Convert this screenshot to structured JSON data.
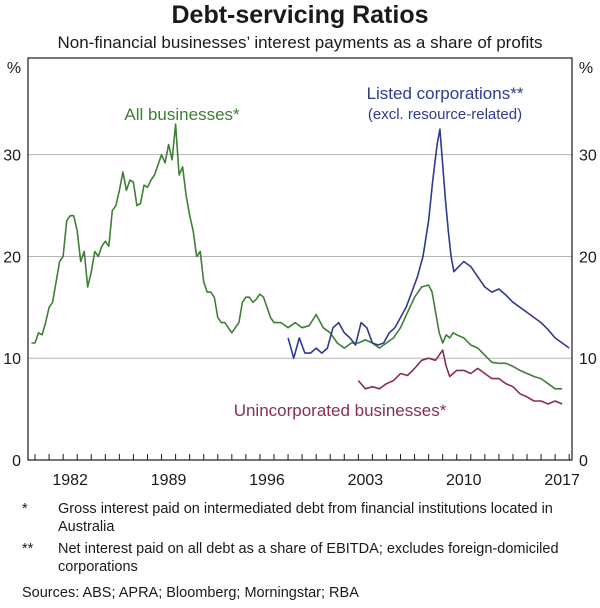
{
  "chart_data": {
    "type": "line",
    "title": "Debt-servicing Ratios",
    "subtitle": "Non-financial businesses’ interest payments as a share of profits",
    "y_unit_left": "%",
    "y_unit_right": "%",
    "ylim": [
      0,
      39.5
    ],
    "yticks": [
      0,
      10,
      20,
      30
    ],
    "xlim": [
      1979.5,
      2018.2
    ],
    "xticks": [
      1982,
      1989,
      1996,
      2003,
      2010,
      2017
    ],
    "grid": true,
    "series": [
      {
        "name": "All businesses*",
        "color": "#3f7f35",
        "x": [
          1979.75,
          1980.0,
          1980.25,
          1980.5,
          1980.75,
          1981.0,
          1981.25,
          1981.5,
          1981.75,
          1982.0,
          1982.25,
          1982.5,
          1982.75,
          1983.0,
          1983.25,
          1983.5,
          1983.75,
          1984.0,
          1984.25,
          1984.5,
          1984.75,
          1985.0,
          1985.25,
          1985.5,
          1985.75,
          1986.0,
          1986.25,
          1986.5,
          1986.75,
          1987.0,
          1987.25,
          1987.5,
          1987.75,
          1988.0,
          1988.25,
          1988.5,
          1988.75,
          1989.0,
          1989.25,
          1989.5,
          1989.75,
          1990.0,
          1990.25,
          1990.5,
          1990.75,
          1991.0,
          1991.25,
          1991.5,
          1991.75,
          1992.0,
          1992.25,
          1992.5,
          1992.75,
          1993.0,
          1993.25,
          1993.5,
          1993.75,
          1994.0,
          1994.25,
          1994.5,
          1994.75,
          1995.0,
          1995.25,
          1995.5,
          1995.75,
          1996.0,
          1996.25,
          1996.5,
          1996.75,
          1997.0,
          1997.5,
          1998.0,
          1998.5,
          1999.0,
          1999.5,
          2000.0,
          2000.5,
          2001.0,
          2001.5,
          2002.0,
          2002.5,
          2003.0,
          2003.5,
          2004.0,
          2004.5,
          2005.0,
          2005.5,
          2006.0,
          2006.5,
          2007.0,
          2007.5,
          2008.0,
          2008.25,
          2008.5,
          2008.75,
          2009.0,
          2009.25,
          2009.5,
          2009.75,
          2010.0,
          2010.5,
          2011.0,
          2011.5,
          2012.0,
          2012.5,
          2013.0,
          2013.5,
          2014.0,
          2014.5,
          2015.0,
          2015.5,
          2016.0,
          2016.5,
          2017.0,
          2017.5
        ],
        "values": [
          11.5,
          11.5,
          12.5,
          12.3,
          13.5,
          15.0,
          15.5,
          17.5,
          19.5,
          20.0,
          23.5,
          24.0,
          24.0,
          22.5,
          19.5,
          20.5,
          17.0,
          18.5,
          20.5,
          20.0,
          21.0,
          21.5,
          21.0,
          24.5,
          25.0,
          26.5,
          28.3,
          26.5,
          27.5,
          27.3,
          25.0,
          25.2,
          27.0,
          26.8,
          27.5,
          28.0,
          29.0,
          30.0,
          29.2,
          31.0,
          29.5,
          33.0,
          28.0,
          28.8,
          26.0,
          24.0,
          22.5,
          20.0,
          20.5,
          17.5,
          16.5,
          16.5,
          16.0,
          14.0,
          13.5,
          13.5,
          13.0,
          12.5,
          13.0,
          13.5,
          15.5,
          16.0,
          16.0,
          15.5,
          15.8,
          16.3,
          16.0,
          15.0,
          14.0,
          13.5,
          13.5,
          13.0,
          13.5,
          13.0,
          13.2,
          14.3,
          13.0,
          12.5,
          11.5,
          11.0,
          11.5,
          11.5,
          11.8,
          11.5,
          11.0,
          11.5,
          12.0,
          13.0,
          14.5,
          16.0,
          17.0,
          17.2,
          16.5,
          14.5,
          12.5,
          11.5,
          12.3,
          12.0,
          12.5,
          12.3,
          12.0,
          11.3,
          11.0,
          10.3,
          9.6,
          9.5,
          9.5,
          9.2,
          8.8,
          8.5,
          8.2,
          8.0,
          7.5,
          7.0,
          7.0
        ]
      },
      {
        "name": "Listed corporations**",
        "sublabel": "(excl. resource-related)",
        "color": "#2e3b8f",
        "x": [
          1998.0,
          1998.4,
          1998.8,
          1999.2,
          1999.6,
          2000.0,
          2000.4,
          2000.8,
          2001.2,
          2001.6,
          2002.0,
          2002.4,
          2002.8,
          2003.2,
          2003.6,
          2004.0,
          2004.4,
          2004.8,
          2005.2,
          2005.6,
          2006.0,
          2006.4,
          2006.8,
          2007.2,
          2007.6,
          2008.0,
          2008.3,
          2008.6,
          2008.8,
          2009.0,
          2009.2,
          2009.4,
          2009.6,
          2009.8,
          2010.0,
          2010.5,
          2011.0,
          2011.5,
          2012.0,
          2012.5,
          2013.0,
          2013.5,
          2014.0,
          2014.5,
          2015.0,
          2015.5,
          2016.0,
          2016.5,
          2017.0,
          2017.5,
          2018.0
        ],
        "values": [
          12.0,
          10.0,
          12.0,
          10.5,
          10.5,
          11.0,
          10.5,
          11.0,
          13.0,
          13.5,
          12.5,
          12.0,
          11.3,
          13.5,
          13.0,
          11.5,
          11.3,
          11.5,
          12.5,
          13.0,
          14.0,
          15.0,
          16.5,
          18.0,
          20.0,
          23.5,
          27.5,
          31.0,
          32.5,
          29.0,
          25.5,
          22.5,
          20.0,
          18.5,
          18.8,
          19.5,
          19.0,
          18.0,
          17.0,
          16.5,
          16.8,
          16.2,
          15.5,
          15.0,
          14.5,
          14.0,
          13.5,
          12.8,
          12.0,
          11.5,
          11.0
        ]
      },
      {
        "name": "Unincorporated businesses*",
        "color": "#8a2e4e",
        "x": [
          2003.0,
          2003.5,
          2004.0,
          2004.5,
          2005.0,
          2005.5,
          2006.0,
          2006.5,
          2007.0,
          2007.5,
          2008.0,
          2008.5,
          2009.0,
          2009.25,
          2009.5,
          2010.0,
          2010.5,
          2011.0,
          2011.5,
          2012.0,
          2012.5,
          2013.0,
          2013.5,
          2014.0,
          2014.5,
          2015.0,
          2015.5,
          2016.0,
          2016.5,
          2017.0,
          2017.5
        ],
        "values": [
          7.8,
          7.0,
          7.2,
          7.0,
          7.5,
          7.8,
          8.5,
          8.3,
          9.0,
          9.8,
          10.0,
          9.8,
          10.8,
          9.2,
          8.2,
          8.8,
          8.8,
          8.5,
          9.0,
          8.5,
          8.0,
          8.0,
          7.5,
          7.2,
          6.5,
          6.2,
          5.8,
          5.8,
          5.5,
          5.8,
          5.5
        ]
      }
    ]
  },
  "labels": {
    "all": "All businesses*",
    "listed": "Listed corporations**",
    "listed_sub": "(excl. resource-related)",
    "unincorporated": "Unincorporated businesses*"
  },
  "notes": [
    {
      "mark": "*",
      "text": "Gross interest paid on intermediated debt from financial institutions located in Australia"
    },
    {
      "mark": "**",
      "text": "Net interest paid on all debt as a share of EBITDA; excludes foreign-domiciled corporations"
    }
  ],
  "sources": "Sources: ABS; APRA; Bloomberg; Morningstar; RBA"
}
